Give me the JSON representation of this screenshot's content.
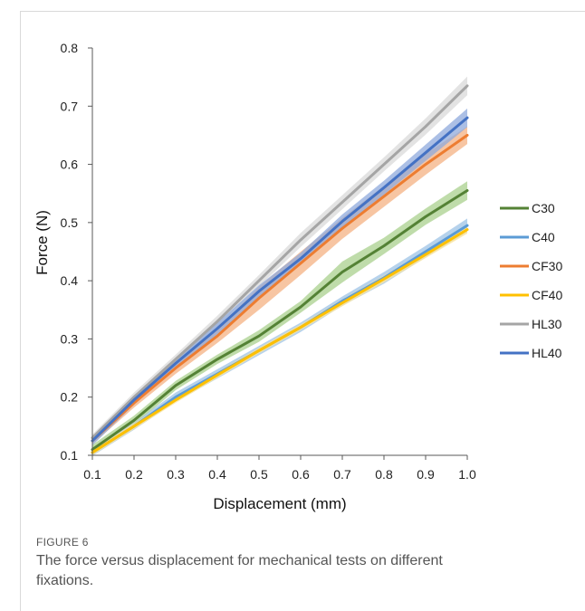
{
  "figure": {
    "label": "FIGURE 6",
    "caption": "The force versus displacement for mechanical tests on different fixations."
  },
  "chart_data": {
    "type": "line",
    "title": "",
    "xlabel": "Displacement (mm)",
    "ylabel": "Force (N)",
    "xlim": [
      0.1,
      1.0
    ],
    "ylim": [
      0.1,
      0.8
    ],
    "x_ticks": [
      "0.1",
      "0.2",
      "0.3",
      "0.4",
      "0.5",
      "0.6",
      "0.7",
      "0.8",
      "0.9",
      "1.0"
    ],
    "y_ticks": [
      "0.1",
      "0.2",
      "0.3",
      "0.4",
      "0.5",
      "0.6",
      "0.7",
      "0.8"
    ],
    "grid": false,
    "legend_position": "right",
    "x": [
      0.1,
      0.2,
      0.3,
      0.4,
      0.5,
      0.6,
      0.7,
      0.8,
      0.9,
      1.0
    ],
    "series": [
      {
        "name": "C30",
        "color": "#548235",
        "band_color": "#a9d08e",
        "values": [
          0.11,
          0.16,
          0.22,
          0.265,
          0.305,
          0.355,
          0.415,
          0.46,
          0.51,
          0.555
        ],
        "spread": [
          0.008,
          0.008,
          0.008,
          0.008,
          0.01,
          0.01,
          0.018,
          0.014,
          0.014,
          0.016
        ]
      },
      {
        "name": "C40",
        "color": "#5b9bd5",
        "band_color": "#9dc3e6",
        "values": [
          0.105,
          0.15,
          0.2,
          0.24,
          0.28,
          0.32,
          0.365,
          0.405,
          0.45,
          0.495
        ],
        "spread": [
          0.006,
          0.006,
          0.008,
          0.008,
          0.008,
          0.008,
          0.008,
          0.01,
          0.01,
          0.012
        ]
      },
      {
        "name": "CF30",
        "color": "#ed7d31",
        "band_color": "#f4b183",
        "values": [
          0.125,
          0.19,
          0.25,
          0.305,
          0.37,
          0.43,
          0.49,
          0.545,
          0.6,
          0.65
        ],
        "spread": [
          0.006,
          0.008,
          0.01,
          0.012,
          0.02,
          0.02,
          0.018,
          0.018,
          0.018,
          0.015
        ]
      },
      {
        "name": "CF40",
        "color": "#ffc000",
        "band_color": "#ffe699",
        "values": [
          0.105,
          0.15,
          0.195,
          0.238,
          0.28,
          0.32,
          0.362,
          0.403,
          0.445,
          0.488
        ],
        "spread": [
          0.005,
          0.005,
          0.005,
          0.005,
          0.005,
          0.005,
          0.006,
          0.006,
          0.006,
          0.007
        ]
      },
      {
        "name": "HL30",
        "color": "#a5a5a5",
        "band_color": "#d9d9d9",
        "values": [
          0.13,
          0.2,
          0.265,
          0.33,
          0.4,
          0.47,
          0.535,
          0.6,
          0.665,
          0.735
        ],
        "spread": [
          0.006,
          0.008,
          0.008,
          0.01,
          0.01,
          0.012,
          0.012,
          0.012,
          0.014,
          0.016
        ]
      },
      {
        "name": "HL40",
        "color": "#4472c4",
        "band_color": "#8faadc",
        "values": [
          0.125,
          0.195,
          0.258,
          0.318,
          0.382,
          0.438,
          0.502,
          0.56,
          0.62,
          0.68
        ],
        "spread": [
          0.008,
          0.008,
          0.008,
          0.01,
          0.01,
          0.01,
          0.012,
          0.012,
          0.014,
          0.016
        ]
      }
    ]
  }
}
